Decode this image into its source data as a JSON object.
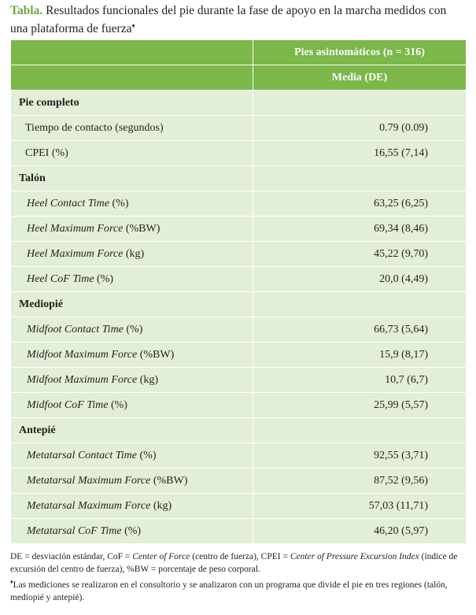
{
  "header": {
    "label": "Tabla.",
    "title": "Resultados funcionales del pie durante la fase de apoyo en la marcha medidos con una plataforma de fuerza",
    "mark": "♦"
  },
  "table": {
    "columns": [
      "Pies asintomáticos (n = 316)",
      "Media (DE)"
    ],
    "rows": [
      {
        "section": "Pie completo"
      },
      {
        "label": "Tiempo de contacto (segundos)",
        "value": "0.79 (0.09)"
      },
      {
        "label": "CPEI (%)",
        "value": "16,55 (7,14)"
      },
      {
        "section": "Talón"
      },
      {
        "term": "Heel Contact Time",
        "unit": "(%)",
        "value": "63,25 (6,25)"
      },
      {
        "term": "Heel Maximum Force",
        "unit": "(%BW)",
        "value": "69,34 (8,46)"
      },
      {
        "term": "Heel Maximum Force",
        "unit": "(kg)",
        "value": "45,22 (9,70)"
      },
      {
        "term": "Heel CoF Time",
        "unit": "(%)",
        "value": "20,0 (4,49)"
      },
      {
        "section": "Mediopié"
      },
      {
        "term": "Midfoot Contact Time",
        "unit": "(%)",
        "value": "66,73 (5,64)"
      },
      {
        "term": "Midfoot Maximum Force",
        "unit": "(%BW)",
        "value": "15,9 (8,17)"
      },
      {
        "term": "Midfoot Maximum Force",
        "unit": "(kg)",
        "value": "10,7 (6,7)"
      },
      {
        "term": "Midfoot CoF Time",
        "unit": "(%)",
        "value": "25,99 (5,57)"
      },
      {
        "section": "Antepié"
      },
      {
        "term": "Metatarsal Contact Time",
        "unit": "(%)",
        "value": "92,55 (3,71)"
      },
      {
        "term": "Metatarsal Maximum Force",
        "unit": "(%BW)",
        "value": "87,52 (9,56)"
      },
      {
        "term": "Metatarsal Maximum Force",
        "unit": "(kg)",
        "value": "57,03 (11,71)"
      },
      {
        "term": "Metatarsal CoF Time",
        "unit": "(%)",
        "value": "46,20 (5,97)"
      }
    ]
  },
  "notes": {
    "abbrev": [
      "DE = desviación estándar, CoF = ",
      "Center of Force",
      " (centro de fuerza), CPEI = ",
      "Center of Pressure Excursion Index",
      " (índice de excursión del centro de fuerza), %BW = porcentaje de peso corporal."
    ],
    "mark": "♦",
    "measure": "Las mediciones se realizaron en el consultorio y se analizaron con un programa que divide el pie en tres regiones (talón, mediopié y antepié)."
  }
}
